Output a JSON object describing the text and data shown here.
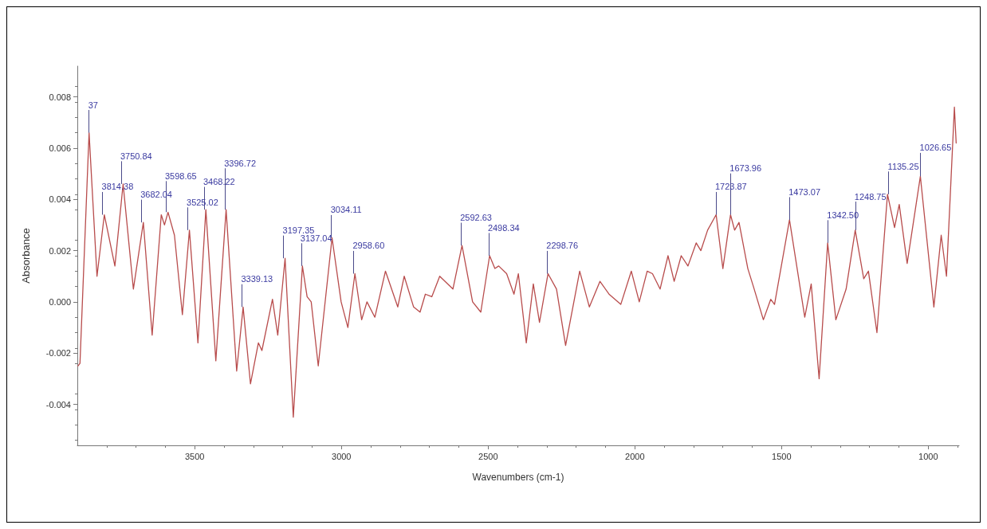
{
  "chart_data": {
    "type": "line",
    "xlabel": "Wavenumbers (cm-1)",
    "ylabel": "Absorbance",
    "xlim": [
      3900,
      895
    ],
    "xticks": [
      3500,
      3000,
      2500,
      2000,
      1500,
      1000
    ],
    "ylim": [
      -0.0056,
      0.0092
    ],
    "yticks": [
      -0.004,
      -0.002,
      {
        "value": 0,
        "label": "0.000"
      },
      0.002,
      0.004,
      0.006,
      0.008
    ],
    "grid": false,
    "marker": "none",
    "line_style": "solid",
    "series": [
      {
        "color": "#b84c4c",
        "x": [
          3898,
          3891,
          3860,
          3833,
          3808,
          3772,
          3744,
          3709,
          3675,
          3645,
          3614,
          3603,
          3591,
          3569,
          3542,
          3518,
          3489,
          3462,
          3428,
          3393,
          3357,
          3335,
          3310,
          3283,
          3271,
          3235,
          3217,
          3192,
          3164,
          3133,
          3117,
          3103,
          3079,
          3032,
          3001,
          2978,
          2954,
          2931,
          2913,
          2886,
          2850,
          2808,
          2786,
          2754,
          2732,
          2714,
          2692,
          2665,
          2620,
          2589,
          2553,
          2525,
          2495,
          2477,
          2464,
          2437,
          2412,
          2397,
          2370,
          2346,
          2325,
          2296,
          2267,
          2236,
          2188,
          2155,
          2119,
          2088,
          2048,
          2012,
          1985,
          1958,
          1940,
          1914,
          1887,
          1866,
          1842,
          1819,
          1791,
          1775,
          1752,
          1723,
          1700,
          1674,
          1660,
          1645,
          1615,
          1596,
          1562,
          1537,
          1524,
          1473,
          1421,
          1399,
          1372,
          1343,
          1315,
          1280,
          1249,
          1220,
          1204,
          1175,
          1139,
          1115,
          1099,
          1072,
          1027,
          981,
          956,
          938,
          911,
          905
        ],
        "values": [
          -0.0025,
          -0.0024,
          0.0066,
          0.001,
          0.0034,
          0.0014,
          0.0046,
          0.0005,
          0.0031,
          -0.0013,
          0.0034,
          0.003,
          0.0035,
          0.0026,
          -0.0005,
          0.0028,
          -0.0016,
          0.0036,
          -0.0023,
          0.0036,
          -0.0027,
          -0.0002,
          -0.0032,
          -0.0016,
          -0.0019,
          0.0001,
          -0.0013,
          0.0017,
          -0.0045,
          0.0014,
          0.0002,
          0.0,
          -0.0025,
          0.0025,
          0.0,
          -0.001,
          0.0011,
          -0.0007,
          0.0,
          -0.0006,
          0.0012,
          -0.0002,
          0.001,
          -0.0002,
          -0.0004,
          0.0003,
          0.0002,
          0.001,
          0.0005,
          0.0022,
          0.0,
          -0.0004,
          0.0018,
          0.0013,
          0.0014,
          0.0011,
          0.0003,
          0.0011,
          -0.0016,
          0.0007,
          -0.0008,
          0.0011,
          0.0005,
          -0.0017,
          0.0012,
          -0.0002,
          0.0008,
          0.0003,
          -0.0001,
          0.0012,
          0.0,
          0.0012,
          0.0011,
          0.0005,
          0.0018,
          0.0008,
          0.0018,
          0.0014,
          0.0023,
          0.002,
          0.0028,
          0.0034,
          0.0013,
          0.0034,
          0.0028,
          0.0031,
          0.0013,
          0.0006,
          -0.0007,
          0.0001,
          -0.0001,
          0.0032,
          -0.0006,
          0.0007,
          -0.003,
          0.0023,
          -0.0007,
          0.0005,
          0.0028,
          0.0009,
          0.0012,
          -0.0012,
          0.0042,
          0.0029,
          0.0038,
          0.0015,
          0.0049,
          -0.0002,
          0.0026,
          0.001,
          0.0076,
          0.0062
        ]
      }
    ],
    "annotations": [
      {
        "text": "37",
        "x": 3860,
        "y": 0.0066
      },
      {
        "text": "3814.38",
        "x": 3814.38,
        "y": 0.0034
      },
      {
        "text": "3750.84",
        "x": 3750.84,
        "y": 0.0046
      },
      {
        "text": "3682.04",
        "x": 3682.04,
        "y": 0.0031
      },
      {
        "text": "3598.65",
        "x": 3598.65,
        "y": 0.0035
      },
      {
        "text": "3525.02",
        "x": 3525.02,
        "y": 0.0028
      },
      {
        "text": "3468.22",
        "x": 3468.22,
        "y": 0.0036
      },
      {
        "text": "3396.72",
        "x": 3396.72,
        "y": 0.0036
      },
      {
        "text": "3339.13",
        "x": 3339.13,
        "y": -0.0002
      },
      {
        "text": "3197.35",
        "x": 3197.35,
        "y": 0.0017
      },
      {
        "text": "3137.04",
        "x": 3137.04,
        "y": 0.0014
      },
      {
        "text": "3034.11",
        "x": 3034.11,
        "y": 0.0025
      },
      {
        "text": "2958.60",
        "x": 2958.6,
        "y": 0.0011
      },
      {
        "text": "2592.63",
        "x": 2592.63,
        "y": 0.0022
      },
      {
        "text": "2498.34",
        "x": 2498.34,
        "y": 0.0018
      },
      {
        "text": "2298.76",
        "x": 2298.76,
        "y": 0.0011
      },
      {
        "text": "1723.87",
        "x": 1723.87,
        "y": 0.0034
      },
      {
        "text": "1673.96",
        "x": 1673.96,
        "y": 0.0034
      },
      {
        "text": "1473.07",
        "x": 1473.07,
        "y": 0.0032
      },
      {
        "text": "1342.50",
        "x": 1342.5,
        "y": 0.0023
      },
      {
        "text": "1248.75",
        "x": 1248.75,
        "y": 0.0028
      },
      {
        "text": "1135.25",
        "x": 1135.25,
        "y": 0.0042
      },
      {
        "text": "1026.65",
        "x": 1026.65,
        "y": 0.0049
      }
    ]
  }
}
